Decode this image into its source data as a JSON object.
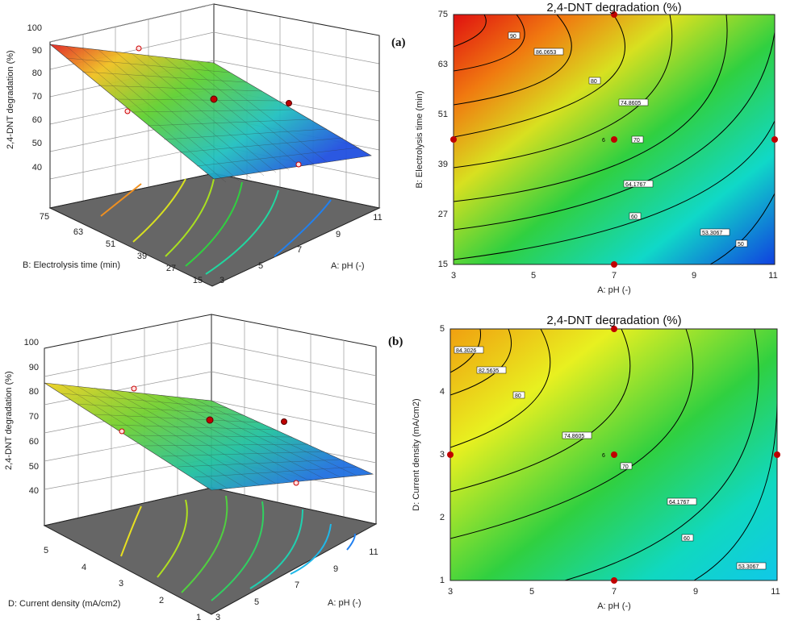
{
  "panel_labels": [
    "(a)",
    "(b)"
  ],
  "chart_data": [
    {
      "type": "surface3d",
      "panel": "(a) surface",
      "zlabel": "2,4-DNT degradation (%)",
      "zticks": [
        "40",
        "50",
        "60",
        "70",
        "80",
        "90",
        "100"
      ],
      "zlim": [
        40,
        100
      ],
      "xlabel": "A: pH (-)",
      "xticks": [
        "3",
        "5",
        "7",
        "9",
        "11"
      ],
      "xlim": [
        3,
        11
      ],
      "ylabel": "B: Electrolysis time (min)",
      "yticks": [
        "15",
        "27",
        "39",
        "51",
        "63",
        "75"
      ],
      "ylim": [
        15,
        75
      ],
      "surface_corners": {
        "pH3_t75": 94,
        "pH11_t75": 72,
        "pH3_t15": 63,
        "pH11_t15": 45
      },
      "design_points": [
        {
          "x": 7,
          "y": 45,
          "z": 73
        },
        {
          "x": 3,
          "y": 45,
          "z": 78
        },
        {
          "x": 11,
          "y": 45,
          "z": 58
        },
        {
          "x": 7,
          "y": 75,
          "z": 80
        },
        {
          "x": 7,
          "y": 15,
          "z": 53
        }
      ]
    },
    {
      "type": "contour",
      "panel": "(a) contour",
      "title": "2,4-DNT degradation (%)",
      "xlabel": "A: pH (-)",
      "ylabel": "B: Electrolysis time (min)",
      "xticks": [
        "3",
        "5",
        "7",
        "9",
        "11"
      ],
      "yticks": [
        "15",
        "27",
        "39",
        "51",
        "63",
        "75"
      ],
      "xlim": [
        3,
        11
      ],
      "ylim": [
        15,
        75
      ],
      "contour_levels": [
        "90",
        "86.0653",
        "80",
        "74.8605",
        "70",
        "64.1767",
        "60",
        "53.3067",
        "50"
      ],
      "center_label": "6",
      "design_points": [
        {
          "x": 7,
          "y": 45
        },
        {
          "x": 3,
          "y": 45
        },
        {
          "x": 11,
          "y": 45
        },
        {
          "x": 7,
          "y": 75
        },
        {
          "x": 7,
          "y": 15
        }
      ]
    },
    {
      "type": "surface3d",
      "panel": "(b) surface",
      "zlabel": "2,4-DNT degradation (%)",
      "zticks": [
        "40",
        "50",
        "60",
        "70",
        "80",
        "90",
        "100"
      ],
      "zlim": [
        40,
        100
      ],
      "xlabel": "A: pH (-)",
      "xticks": [
        "3",
        "5",
        "7",
        "9",
        "11"
      ],
      "xlim": [
        3,
        11
      ],
      "ylabel": "D: Current density (mA/cm2)",
      "yticks": [
        "1",
        "2",
        "3",
        "4",
        "5"
      ],
      "ylim": [
        1,
        5
      ],
      "surface_corners": {
        "pH3_d5": 85,
        "pH11_d5": 68,
        "pH3_d1": 72,
        "pH11_d1": 52
      },
      "design_points": [
        {
          "x": 7,
          "y": 3,
          "z": 74
        },
        {
          "x": 3,
          "y": 3,
          "z": 72
        },
        {
          "x": 11,
          "y": 3,
          "z": 55
        },
        {
          "x": 7,
          "y": 5,
          "z": 78
        },
        {
          "x": 7,
          "y": 1,
          "z": 62
        }
      ]
    },
    {
      "type": "contour",
      "panel": "(b) contour",
      "title": "2,4-DNT degradation (%)",
      "xlabel": "A: pH (-)",
      "ylabel": "D: Current density (mA/cm2)",
      "xticks": [
        "3",
        "5",
        "7",
        "9",
        "11"
      ],
      "yticks": [
        "1",
        "2",
        "3",
        "4",
        "5"
      ],
      "xlim": [
        3,
        11
      ],
      "ylim": [
        1,
        5
      ],
      "contour_levels": [
        "84.3026",
        "82.5635",
        "80",
        "74.8605",
        "70",
        "64.1767",
        "60",
        "53.3067"
      ],
      "center_label": "6",
      "design_points": [
        {
          "x": 7,
          "y": 3
        },
        {
          "x": 3,
          "y": 3
        },
        {
          "x": 11,
          "y": 3
        },
        {
          "x": 7,
          "y": 5
        },
        {
          "x": 7,
          "y": 1
        }
      ]
    }
  ]
}
